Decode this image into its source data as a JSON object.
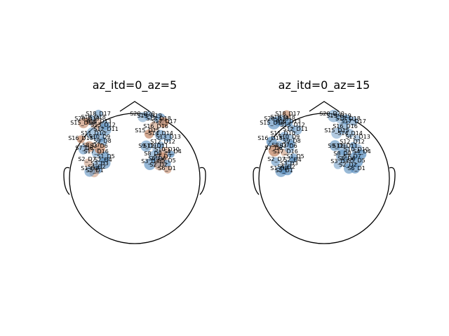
{
  "panels": [
    {
      "title": "az_itd=0_az=5",
      "left_channel_labels": [
        "S18_D17",
        "S19_D18",
        "S20_D19",
        "S15_D14",
        "S14_D13",
        "S13_D12",
        "S12_D11",
        "S16_D15",
        "S11_D10",
        "S10_D9",
        "S9_D8",
        "S8_D7",
        "S7_D6",
        "S17_D16",
        "S1_D5",
        "S2_D4",
        "S3_D3",
        "S4_D2",
        "S5_D1",
        "S1_D8",
        "S2_D7",
        "S3_D6"
      ],
      "right_channel_labels": [
        "S20_D20",
        "S19_D19",
        "S18_D18",
        "S17_D17",
        "S16_D16",
        "S15_D15",
        "S14_D14",
        "S13_D13",
        "S12_D12",
        "S11_D11",
        "S10_D10",
        "S9_D9",
        "S8_D8",
        "S7_D7",
        "S6_D6",
        "S5_D5",
        "S4_D4",
        "S3_D3",
        "S2_D2",
        "S6_D1"
      ],
      "palette": {
        "positive": "#c0825f",
        "negative": "#5b8fbf"
      }
    },
    {
      "title": "az_itd=0_az=15",
      "left_channel_labels": [
        "S18_D17",
        "S19_D18",
        "S20_D19",
        "S15_D14",
        "S14_D13",
        "S13_D12",
        "S12_D11",
        "S16_D15",
        "S11_D10",
        "S10_D9",
        "S9_D8",
        "S8_D7",
        "S7_D6",
        "S17_D16",
        "S1_D5",
        "S2_D4",
        "S3_D3",
        "S4_D2",
        "S5_D1",
        "S1_D8",
        "S2_D7",
        "S3_D6"
      ],
      "right_channel_labels": [
        "S20_D20",
        "S19_D19",
        "S18_D18",
        "S17_D17",
        "S16_D16",
        "S15_D15",
        "S14_D14",
        "S13_D13",
        "S12_D12",
        "S11_D11",
        "S10_D10",
        "S9_D9",
        "S8_D8",
        "S7_D7",
        "S6_D6",
        "S5_D5",
        "S4_D4",
        "S3_D3",
        "S2_D2",
        "S6_D1"
      ],
      "palette": {
        "positive": "#c0825f",
        "negative": "#5b8fbf"
      }
    }
  ]
}
